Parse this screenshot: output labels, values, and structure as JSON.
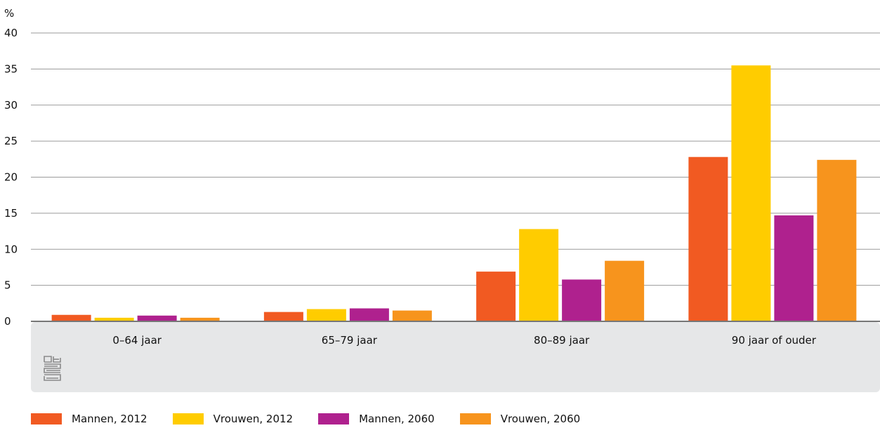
{
  "chart_data": {
    "type": "bar",
    "ylabel": "%",
    "ylim": [
      0,
      40
    ],
    "yticks": [
      "0",
      "5",
      "10",
      "15",
      "20",
      "25",
      "30",
      "35",
      "40"
    ],
    "grid": true,
    "legend_position": "bottom",
    "categories": [
      "0–64 jaar",
      "65–79 jaar",
      "80–89 jaar",
      "90 jaar of ouder"
    ],
    "series": [
      {
        "name": "Mannen, 2012",
        "color": "#f15a22",
        "values": [
          0.9,
          1.3,
          6.9,
          22.8
        ]
      },
      {
        "name": "Vrouwen, 2012",
        "color": "#ffcc00",
        "values": [
          0.5,
          1.7,
          12.8,
          35.5
        ]
      },
      {
        "name": "Mannen, 2060",
        "color": "#af218e",
        "values": [
          0.8,
          1.8,
          5.8,
          14.7
        ]
      },
      {
        "name": "Vrouwen, 2060",
        "color": "#f7941d",
        "values": [
          0.5,
          1.5,
          8.4,
          22.4
        ]
      }
    ]
  },
  "logo": {
    "icon": "cbs-logo-icon",
    "text": "cbs"
  }
}
